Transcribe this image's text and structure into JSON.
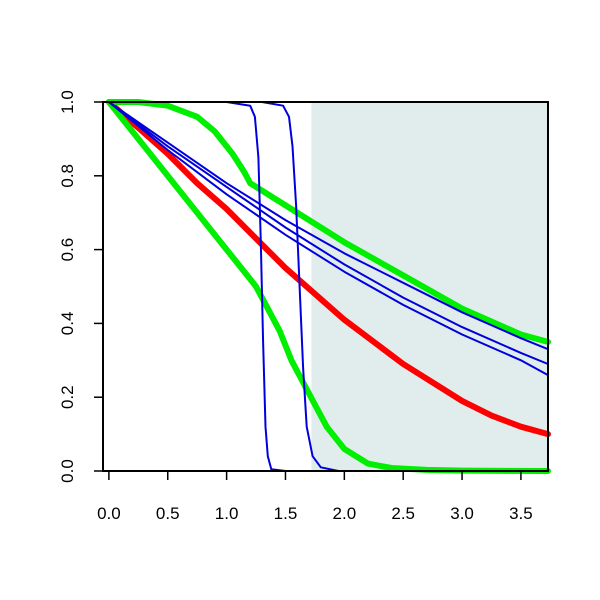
{
  "chart_data": {
    "type": "line",
    "title": "",
    "xlabel": "",
    "ylabel": "",
    "xlim": [
      -0.05,
      3.73
    ],
    "ylim": [
      0.0,
      1.0
    ],
    "x_ticks": [
      "0.0",
      "0.5",
      "1.0",
      "1.5",
      "2.0",
      "2.5",
      "3.0",
      "3.5"
    ],
    "y_ticks": [
      "0.0",
      "0.2",
      "0.4",
      "0.6",
      "0.8",
      "1.0"
    ],
    "grid": false,
    "legend": "none",
    "shaded_region": {
      "x_from": 1.72,
      "x_to": 3.73,
      "color": "#e1eded"
    },
    "series": [
      {
        "color": "#ff0000",
        "width": "thick",
        "x": [
          0,
          0.25,
          0.5,
          0.75,
          1.0,
          1.25,
          1.5,
          1.75,
          2.0,
          2.25,
          2.5,
          2.75,
          3.0,
          3.25,
          3.5,
          3.73
        ],
        "y": [
          1.0,
          0.93,
          0.86,
          0.78,
          0.71,
          0.63,
          0.55,
          0.48,
          0.41,
          0.35,
          0.29,
          0.24,
          0.19,
          0.15,
          0.12,
          0.1
        ]
      },
      {
        "color": "#00ee00",
        "width": "thick",
        "x": [
          0,
          0.25,
          0.5,
          0.75,
          1.0,
          1.15,
          1.25,
          1.35,
          1.45,
          1.55,
          1.65,
          1.75,
          1.85,
          2.0,
          2.2,
          2.4,
          2.7,
          3.0,
          3.73
        ],
        "y": [
          1.0,
          0.9,
          0.8,
          0.7,
          0.6,
          0.54,
          0.5,
          0.44,
          0.38,
          0.3,
          0.24,
          0.18,
          0.12,
          0.06,
          0.02,
          0.008,
          0.003,
          0.001,
          0.0
        ]
      },
      {
        "color": "#00ee00",
        "width": "thick",
        "x": [
          0,
          0.25,
          0.5,
          0.75,
          0.9,
          1.05,
          1.15,
          1.2,
          1.5,
          2.0,
          2.5,
          3.0,
          3.5,
          3.73
        ],
        "y": [
          1.0,
          1.0,
          0.99,
          0.96,
          0.92,
          0.86,
          0.81,
          0.78,
          0.72,
          0.62,
          0.53,
          0.44,
          0.37,
          0.35
        ]
      },
      {
        "color": "#0000dd",
        "width": "thin",
        "x": [
          0,
          0.5,
          1.0,
          1.5,
          2.0,
          2.5,
          3.0,
          3.5,
          3.73
        ],
        "y": [
          1.0,
          0.89,
          0.78,
          0.68,
          0.59,
          0.51,
          0.43,
          0.36,
          0.33
        ]
      },
      {
        "color": "#0000dd",
        "width": "thin",
        "x": [
          0,
          0.5,
          1.0,
          1.5,
          2.0,
          2.5,
          3.0,
          3.5,
          3.73
        ],
        "y": [
          1.0,
          0.88,
          0.77,
          0.66,
          0.56,
          0.47,
          0.39,
          0.32,
          0.29
        ]
      },
      {
        "color": "#0000dd",
        "width": "thin",
        "x": [
          0,
          0.5,
          1.0,
          1.5,
          2.0,
          2.5,
          3.0,
          3.5,
          3.73
        ],
        "y": [
          1.0,
          0.87,
          0.75,
          0.64,
          0.54,
          0.45,
          0.37,
          0.3,
          0.26
        ]
      },
      {
        "color": "#0000dd",
        "width": "thin",
        "x": [
          0,
          1.0,
          1.2,
          1.24,
          1.27,
          1.29,
          1.31,
          1.33,
          1.35,
          1.38,
          1.5,
          3.73
        ],
        "y": [
          1.0,
          1.0,
          0.99,
          0.96,
          0.85,
          0.62,
          0.35,
          0.12,
          0.04,
          0.005,
          0.0,
          0.0
        ]
      },
      {
        "color": "#0000dd",
        "width": "thin",
        "x": [
          0,
          1.3,
          1.48,
          1.53,
          1.56,
          1.59,
          1.62,
          1.65,
          1.68,
          1.73,
          1.8,
          1.95,
          3.73
        ],
        "y": [
          1.0,
          1.0,
          0.99,
          0.96,
          0.88,
          0.72,
          0.5,
          0.28,
          0.12,
          0.04,
          0.01,
          0.0,
          0.0
        ]
      }
    ]
  }
}
